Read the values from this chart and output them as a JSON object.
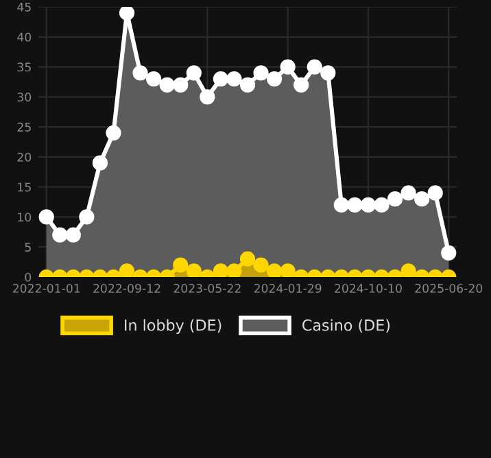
{
  "chart_data": {
    "type": "area",
    "categories": [
      "2022-01-01",
      null,
      null,
      null,
      null,
      null,
      "2022-09-12",
      null,
      null,
      null,
      null,
      null,
      "2023-05-22",
      null,
      null,
      null,
      null,
      null,
      "2024-01-29",
      null,
      null,
      null,
      null,
      null,
      "2024-10-10",
      null,
      null,
      null,
      null,
      null,
      "2025-06-20"
    ],
    "series": [
      {
        "name": "In lobby (DE)",
        "color": "#ffd700",
        "values": [
          0,
          0,
          0,
          0,
          0,
          0,
          1,
          0,
          0,
          0,
          2,
          1,
          0,
          1,
          1,
          3,
          2,
          1,
          1,
          0,
          0,
          0,
          0,
          0,
          0,
          0,
          0,
          1,
          0,
          0,
          0
        ]
      },
      {
        "name": "Casino (DE)",
        "color": "#ffffff",
        "values": [
          10,
          7,
          7,
          10,
          19,
          24,
          44,
          34,
          33,
          32,
          32,
          34,
          30,
          33,
          33,
          32,
          34,
          33,
          35,
          32,
          35,
          34,
          12,
          12,
          12,
          12,
          13,
          14,
          13,
          14,
          4
        ]
      }
    ],
    "ylim": [
      0,
      45
    ],
    "yticks": [
      0,
      5,
      10,
      15,
      20,
      25,
      30,
      35,
      40,
      45
    ],
    "grid": true,
    "legend": "bottom",
    "marker": "circle"
  }
}
